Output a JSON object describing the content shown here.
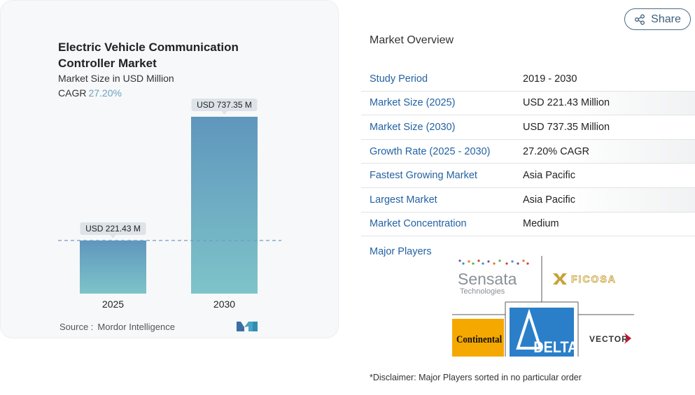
{
  "chart_data": {
    "type": "bar",
    "title": "Electric Vehicle Communication Controller Market",
    "subtitle": "Market Size in USD Million",
    "cagr_label": "CAGR",
    "cagr_value": "27.20%",
    "categories": [
      "2025",
      "2030"
    ],
    "values": [
      221.43,
      737.35
    ],
    "data_labels": [
      "USD 221.43 M",
      "USD 737.35 M"
    ],
    "ylim": [
      0,
      737.35
    ],
    "reference_line": "dashed line at 2025 value",
    "bar_colors": [
      "#5c9ec4",
      "#7fc0c8"
    ],
    "source_label": "Source :",
    "source_value": "Mordor Intelligence"
  },
  "share": {
    "label": "Share",
    "icon": "share-icon"
  },
  "overview": {
    "title": "Market Overview",
    "rows": [
      {
        "key": "Study Period",
        "value": "2019 - 2030"
      },
      {
        "key": "Market Size (2025)",
        "value": "USD 221.43 Million"
      },
      {
        "key": "Market Size (2030)",
        "value": "USD 737.35 Million"
      },
      {
        "key": "Growth Rate (2025 - 2030)",
        "value": "27.20% CAGR"
      },
      {
        "key": "Fastest Growing Market",
        "value": "Asia Pacific"
      },
      {
        "key": "Largest Market",
        "value": "Asia Pacific"
      },
      {
        "key": "Market Concentration",
        "value": "Medium"
      }
    ]
  },
  "players": {
    "label": "Major Players",
    "logos": {
      "sensata_line1": "Sensata",
      "sensata_line2": "Technologies",
      "ficosa": "FICOSA",
      "continental": "Continental",
      "delta": "DELTA",
      "vector": "VECTOR"
    }
  },
  "disclaimer": "*Disclaimer: Major Players sorted in no particular order",
  "colors": {
    "accent": "#2462a3",
    "bar_top": "#5f96bd",
    "bar_bottom": "#7ec4c9"
  }
}
